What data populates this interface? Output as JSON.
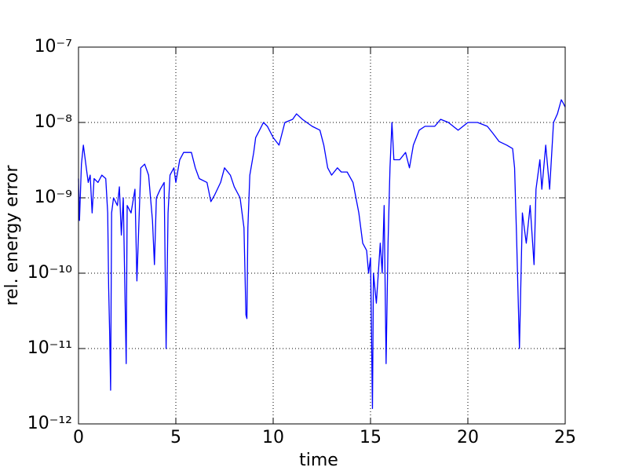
{
  "chart_data": {
    "type": "line",
    "xlabel": "time",
    "ylabel": "rel. energy error",
    "yscale": "log",
    "grid": true,
    "color": "#0000ff",
    "xlim": [
      0,
      25
    ],
    "xticks": [
      0,
      5,
      10,
      15,
      20,
      25
    ],
    "ylim": [
      1e-12,
      1e-07
    ],
    "yticks": [
      {
        "value": 1e-12,
        "label": "10⁻¹²"
      },
      {
        "value": 1e-11,
        "label": "10⁻¹¹"
      },
      {
        "value": 1e-10,
        "label": "10⁻¹⁰"
      },
      {
        "value": 1e-09,
        "label": "10⁻⁹"
      },
      {
        "value": 1e-08,
        "label": "10⁻⁸"
      },
      {
        "value": 1e-07,
        "label": "10⁻⁷"
      }
    ],
    "x": [
      0,
      0.05,
      0.15,
      0.25,
      0.4,
      0.5,
      0.6,
      0.7,
      0.8,
      1.0,
      1.2,
      1.4,
      1.5,
      1.55,
      1.6,
      1.65,
      1.7,
      1.8,
      2.0,
      2.1,
      2.2,
      2.3,
      2.45,
      2.5,
      2.7,
      2.9,
      3.0,
      3.2,
      3.4,
      3.6,
      3.8,
      3.9,
      4.0,
      4.2,
      4.4,
      4.5,
      4.6,
      4.7,
      4.9,
      5.0,
      5.2,
      5.4,
      5.8,
      6.0,
      6.2,
      6.6,
      6.8,
      7.0,
      7.3,
      7.5,
      7.8,
      8.0,
      8.3,
      8.5,
      8.6,
      8.65,
      8.7,
      8.8,
      9.0,
      9.1,
      9.3,
      9.5,
      9.7,
      10.0,
      10.3,
      10.6,
      11.0,
      11.2,
      11.5,
      12.0,
      12.4,
      12.6,
      12.8,
      13.0,
      13.3,
      13.5,
      13.8,
      14.1,
      14.4,
      14.6,
      14.8,
      14.9,
      15.0,
      15.1,
      15.15,
      15.3,
      15.5,
      15.6,
      15.7,
      15.8,
      15.9,
      16.0,
      16.1,
      16.2,
      16.5,
      16.8,
      17.0,
      17.2,
      17.5,
      17.8,
      18.3,
      18.6,
      19.0,
      19.5,
      20.0,
      20.5,
      21.0,
      21.3,
      21.6,
      22.0,
      22.3,
      22.4,
      22.5,
      22.6,
      22.65,
      22.8,
      23.0,
      23.2,
      23.4,
      23.5,
      23.7,
      23.8,
      24.0,
      24.2,
      24.4,
      24.6,
      24.8,
      24.9,
      25.0
    ],
    "values": [
      1.8e-09,
      5e-10,
      2.8e-09,
      5e-09,
      2.5e-09,
      1.6e-09,
      2e-09,
      6.3e-10,
      1.8e-09,
      1.6e-09,
      2e-09,
      1.8e-09,
      6.3e-10,
      6.3e-11,
      1.6e-11,
      2.8e-12,
      6.3e-10,
      1e-09,
      7.9e-10,
      1.4e-09,
      3.2e-10,
      1e-09,
      6.3e-12,
      7.9e-10,
      6.3e-10,
      1.3e-09,
      7.9e-11,
      2.5e-09,
      2.8e-09,
      2e-09,
      5e-10,
      1.3e-10,
      1e-09,
      1.3e-09,
      1.6e-09,
      1e-11,
      6.3e-10,
      2e-09,
      2.5e-09,
      1.6e-09,
      3.2e-09,
      4e-09,
      4e-09,
      2.5e-09,
      1.8e-09,
      1.6e-09,
      8.9e-10,
      1.1e-09,
      1.6e-09,
      2.5e-09,
      2e-09,
      1.4e-09,
      1e-09,
      4e-10,
      2.8e-11,
      2.5e-11,
      4e-10,
      2e-09,
      4e-09,
      6.3e-09,
      7.9e-09,
      1e-08,
      8.9e-09,
      6.3e-09,
      5e-09,
      1e-08,
      1.1e-08,
      1.3e-08,
      1.1e-08,
      8.9e-09,
      7.9e-09,
      5e-09,
      2.5e-09,
      2e-09,
      2.5e-09,
      2.2e-09,
      2.2e-09,
      1.6e-09,
      6.3e-10,
      2.5e-10,
      2e-10,
      1e-10,
      1.6e-10,
      1.6e-12,
      1e-10,
      4e-11,
      2.5e-10,
      1e-10,
      7.9e-10,
      6.3e-12,
      2.5e-10,
      2.5e-09,
      1e-08,
      3.2e-09,
      3.2e-09,
      4e-09,
      2.5e-09,
      5e-09,
      7.9e-09,
      8.9e-09,
      8.9e-09,
      1.1e-08,
      1e-08,
      7.9e-09,
      1e-08,
      1e-08,
      8.9e-09,
      7.1e-09,
      5.6e-09,
      5e-09,
      4.5e-09,
      2.5e-09,
      3.2e-10,
      3.2e-11,
      1e-11,
      6.3e-10,
      2.5e-10,
      7.9e-10,
      1.3e-10,
      1.3e-09,
      3.2e-09,
      1.3e-09,
      5e-09,
      1.3e-09,
      1e-08,
      1.3e-08,
      2e-08,
      1.8e-08,
      1.6e-08
    ]
  }
}
